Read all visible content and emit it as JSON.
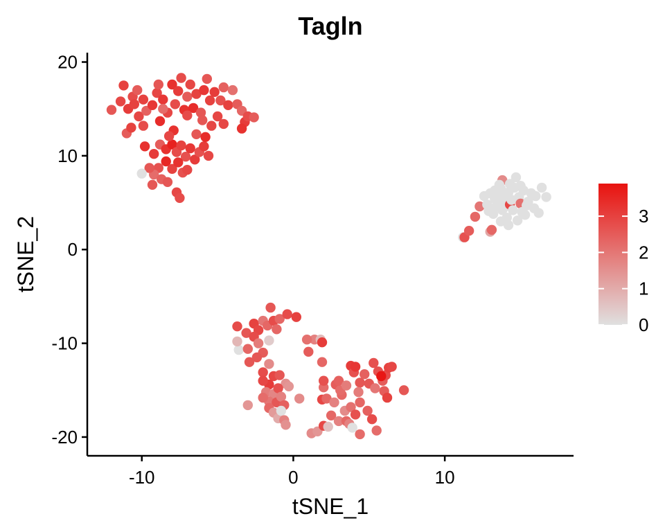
{
  "chart_data": {
    "type": "scatter",
    "title": "Tagln",
    "xlabel": "tSNE_1",
    "ylabel": "tSNE_2",
    "xlim": [
      -13.6,
      18.5
    ],
    "ylim": [
      -22,
      21
    ],
    "x_ticks": [
      -10,
      0,
      10
    ],
    "y_ticks": [
      -20,
      -10,
      0,
      10,
      20
    ],
    "x_tick_labels": [
      "-10",
      "0",
      "10"
    ],
    "y_tick_labels": [
      "-20",
      "-10",
      "0",
      "10",
      "20"
    ],
    "grid": false,
    "legend": {
      "placement": "right",
      "type": "colorbar",
      "min": 0,
      "max": 3.9,
      "ticks": [
        0,
        1,
        2,
        3
      ],
      "tick_labels": [
        "0",
        "1",
        "2",
        "3"
      ],
      "color_low": "#e0e0e0",
      "color_high": "#e8120f"
    },
    "point_color_low": "#e0e0e0",
    "point_color_high": "#e8120f",
    "points": [
      [
        -12.0,
        14.9,
        2.6
      ],
      [
        -11.4,
        15.8,
        2.9
      ],
      [
        -11.2,
        17.5,
        3.0
      ],
      [
        -10.9,
        15.0,
        3.1
      ],
      [
        -11.0,
        12.4,
        2.5
      ],
      [
        -10.7,
        13.0,
        3.0
      ],
      [
        -10.6,
        16.3,
        2.8
      ],
      [
        -10.3,
        17.0,
        2.5
      ],
      [
        -10.2,
        14.2,
        2.9
      ],
      [
        -9.9,
        16.0,
        3.0
      ],
      [
        -9.7,
        14.8,
        2.4
      ],
      [
        -9.9,
        13.2,
        2.8
      ],
      [
        -9.3,
        15.4,
        3.2
      ],
      [
        -9.0,
        16.7,
        2.9
      ],
      [
        -8.8,
        13.7,
        3.4
      ],
      [
        -8.9,
        17.6,
        2.6
      ],
      [
        -8.6,
        16.0,
        3.2
      ],
      [
        -8.3,
        14.6,
        2.9
      ],
      [
        -8.0,
        17.6,
        3.3
      ],
      [
        -7.8,
        15.5,
        2.8
      ],
      [
        -7.6,
        16.9,
        3.1
      ],
      [
        -7.4,
        18.3,
        2.8
      ],
      [
        -7.2,
        14.9,
        3.3
      ],
      [
        -7.0,
        16.3,
        2.5
      ],
      [
        -6.8,
        17.6,
        2.9
      ],
      [
        -6.6,
        15.1,
        3.4
      ],
      [
        -6.4,
        16.6,
        3.0
      ],
      [
        -6.1,
        14.6,
        2.6
      ],
      [
        -5.9,
        17.0,
        3.2
      ],
      [
        -5.7,
        18.2,
        2.6
      ],
      [
        -5.5,
        15.9,
        3.0
      ],
      [
        -5.2,
        16.8,
        3.1
      ],
      [
        -5.0,
        14.2,
        2.9
      ],
      [
        -4.8,
        15.9,
        2.7
      ],
      [
        -4.6,
        17.3,
        2.4
      ],
      [
        -4.3,
        15.4,
        3.0
      ],
      [
        -4.0,
        17.0,
        2.1
      ],
      [
        -3.7,
        15.5,
        2.5
      ],
      [
        -3.4,
        14.8,
        2.3
      ],
      [
        -3.2,
        13.6,
        3.1
      ],
      [
        -3.0,
        14.2,
        2.8
      ],
      [
        -2.6,
        14.1,
        2.5
      ],
      [
        -6.0,
        13.8,
        2.6
      ],
      [
        -5.4,
        13.2,
        2.9
      ],
      [
        -4.6,
        13.4,
        2.9
      ],
      [
        -3.4,
        12.9,
        3.3
      ],
      [
        -8.6,
        15.0,
        2.2
      ],
      [
        -7.0,
        14.3,
        2.8
      ],
      [
        -9.8,
        11.0,
        3.3
      ],
      [
        -9.2,
        10.2,
        3.1
      ],
      [
        -8.8,
        11.2,
        2.5
      ],
      [
        -8.4,
        10.7,
        3.3
      ],
      [
        -8.0,
        11.2,
        3.6
      ],
      [
        -7.7,
        10.4,
        2.8
      ],
      [
        -7.4,
        11.1,
        3.0
      ],
      [
        -7.1,
        9.9,
        2.7
      ],
      [
        -6.8,
        10.8,
        3.2
      ],
      [
        -6.5,
        9.6,
        3.1
      ],
      [
        -6.2,
        10.4,
        2.7
      ],
      [
        -5.9,
        11.0,
        3.1
      ],
      [
        -5.6,
        10.0,
        2.9
      ],
      [
        -8.4,
        9.4,
        3.5
      ],
      [
        -8.0,
        8.6,
        3.0
      ],
      [
        -7.6,
        9.3,
        3.3
      ],
      [
        -7.3,
        8.2,
        2.7
      ],
      [
        -7.0,
        8.5,
        2.9
      ],
      [
        -8.9,
        8.7,
        2.7
      ],
      [
        -9.2,
        8.0,
        2.2
      ],
      [
        -9.5,
        8.7,
        2.6
      ],
      [
        -10.0,
        8.1,
        0.0
      ],
      [
        -8.7,
        7.5,
        2.4
      ],
      [
        -8.3,
        7.2,
        2.6
      ],
      [
        -9.3,
        6.9,
        2.6
      ],
      [
        -7.7,
        6.1,
        2.9
      ],
      [
        -7.5,
        5.5,
        2.8
      ],
      [
        -7.9,
        12.7,
        3.3
      ],
      [
        -8.2,
        12.1,
        2.9
      ],
      [
        -10.5,
        15.5,
        3.0
      ],
      [
        -6.4,
        12.3,
        2.6
      ],
      [
        -5.8,
        12.0,
        3.4
      ],
      [
        -3.7,
        -8.2,
        2.8
      ],
      [
        -3.1,
        -8.9,
        2.6
      ],
      [
        -2.6,
        -7.9,
        3.0
      ],
      [
        -2.3,
        -8.6,
        2.9
      ],
      [
        -2.0,
        -7.6,
        2.0
      ],
      [
        -1.7,
        -8.1,
        2.3
      ],
      [
        -1.5,
        -6.2,
        2.6
      ],
      [
        -1.3,
        -7.6,
        2.8
      ],
      [
        -1.1,
        -8.5,
        2.3
      ],
      [
        -0.9,
        -7.4,
        2.3
      ],
      [
        -0.4,
        -6.9,
        2.8
      ],
      [
        0.2,
        -7.2,
        3.0
      ],
      [
        -3.6,
        -10.7,
        0.0
      ],
      [
        -3.7,
        -9.8,
        0.8
      ],
      [
        -3.0,
        -10.6,
        2.3
      ],
      [
        -2.6,
        -9.3,
        2.8
      ],
      [
        -2.3,
        -10.0,
        1.9
      ],
      [
        -2.0,
        -11.0,
        2.5
      ],
      [
        -1.6,
        -9.7,
        0.4
      ],
      [
        -2.9,
        -12.0,
        2.6
      ],
      [
        -2.4,
        -11.5,
        2.6
      ],
      [
        -2.0,
        -13.1,
        2.8
      ],
      [
        -1.6,
        -12.2,
        1.6
      ],
      [
        -1.3,
        -13.5,
        2.9
      ],
      [
        -0.9,
        -13.4,
        2.6
      ],
      [
        -0.5,
        -14.3,
        1.5
      ],
      [
        -0.3,
        -14.6,
        1.4
      ],
      [
        -1.6,
        -14.4,
        3.1
      ],
      [
        -2.0,
        -14.0,
        2.9
      ],
      [
        -1.8,
        -15.2,
        1.9
      ],
      [
        -1.3,
        -15.4,
        1.7
      ],
      [
        -1.6,
        -16.2,
        2.0
      ],
      [
        -1.0,
        -14.8,
        2.7
      ],
      [
        -2.0,
        -15.8,
        2.2
      ],
      [
        -1.1,
        -16.3,
        2.6
      ],
      [
        -0.8,
        -15.7,
        1.8
      ],
      [
        -0.6,
        -16.6,
        2.4
      ],
      [
        -1.6,
        -16.9,
        2.3
      ],
      [
        -3.0,
        -16.6,
        1.4
      ],
      [
        -1.3,
        -17.4,
        1.3
      ],
      [
        -1.0,
        -18.0,
        1.0
      ],
      [
        -0.8,
        -17.2,
        0.0
      ],
      [
        -0.6,
        -18.2,
        1.8
      ],
      [
        -0.5,
        -18.7,
        1.5
      ],
      [
        0.4,
        -15.9,
        1.6
      ],
      [
        1.0,
        -10.9,
        2.5
      ],
      [
        1.4,
        -9.6,
        1.8
      ],
      [
        1.8,
        -9.6,
        0.7
      ],
      [
        1.9,
        -9.9,
        3.1
      ],
      [
        0.9,
        -9.6,
        2.1
      ],
      [
        1.2,
        -19.6,
        1.6
      ],
      [
        1.6,
        -19.4,
        1.4
      ],
      [
        2.0,
        -18.8,
        2.9
      ],
      [
        2.3,
        -18.9,
        0.6
      ],
      [
        1.9,
        -16.0,
        2.9
      ],
      [
        2.5,
        -17.7,
        2.3
      ],
      [
        2.2,
        -15.9,
        2.3
      ],
      [
        2.7,
        -16.3,
        1.8
      ],
      [
        3.0,
        -18.3,
        1.8
      ],
      [
        3.2,
        -15.5,
        2.3
      ],
      [
        2.0,
        -14.7,
        2.2
      ],
      [
        2.8,
        -14.4,
        2.5
      ],
      [
        3.1,
        -15.0,
        2.2
      ],
      [
        3.4,
        -17.2,
        1.6
      ],
      [
        3.5,
        -18.3,
        2.3
      ],
      [
        3.7,
        -18.6,
        1.8
      ],
      [
        3.8,
        -16.8,
        2.1
      ],
      [
        3.9,
        -19.0,
        0.0
      ],
      [
        4.1,
        -17.6,
        2.7
      ],
      [
        4.4,
        -19.7,
        2.2
      ],
      [
        4.4,
        -16.3,
        2.3
      ],
      [
        4.9,
        -17.2,
        2.4
      ],
      [
        5.2,
        -18.1,
        2.8
      ],
      [
        5.5,
        -19.3,
        2.2
      ],
      [
        2.0,
        -14.0,
        2.7
      ],
      [
        1.9,
        -12.0,
        2.3
      ],
      [
        3.0,
        -14.0,
        2.4
      ],
      [
        3.5,
        -14.5,
        1.9
      ],
      [
        3.8,
        -12.4,
        3.1
      ],
      [
        4.0,
        -13.1,
        2.7
      ],
      [
        4.1,
        -12.5,
        3.2
      ],
      [
        4.4,
        -14.2,
        2.6
      ],
      [
        4.7,
        -13.3,
        2.4
      ],
      [
        5.0,
        -14.3,
        2.6
      ],
      [
        5.3,
        -12.1,
        2.7
      ],
      [
        5.6,
        -13.0,
        2.7
      ],
      [
        5.9,
        -14.0,
        2.5
      ],
      [
        6.1,
        -13.4,
        2.8
      ],
      [
        6.3,
        -12.6,
        3.0
      ],
      [
        6.5,
        -12.5,
        2.9
      ],
      [
        6.0,
        -15.1,
        2.5
      ],
      [
        6.2,
        -15.8,
        3.0
      ],
      [
        7.3,
        -15.0,
        2.6
      ],
      [
        5.8,
        -13.5,
        3.8
      ],
      [
        5.4,
        -14.8,
        2.0
      ],
      [
        4.3,
        -15.2,
        1.9
      ],
      [
        11.2,
        1.3,
        0.0
      ],
      [
        11.3,
        1.3,
        2.7
      ],
      [
        11.6,
        2.0,
        2.5
      ],
      [
        12.0,
        3.5,
        2.3
      ],
      [
        12.3,
        4.6,
        2.0
      ],
      [
        12.6,
        5.7,
        0.0
      ],
      [
        12.8,
        4.8,
        0.0
      ],
      [
        12.9,
        4.1,
        0.0
      ],
      [
        13.0,
        6.0,
        0.0
      ],
      [
        13.0,
        1.9,
        1.1
      ],
      [
        13.1,
        2.1,
        2.3
      ],
      [
        13.2,
        3.8,
        0.0
      ],
      [
        13.3,
        5.4,
        0.0
      ],
      [
        13.3,
        6.3,
        0.0
      ],
      [
        13.4,
        4.6,
        0.0
      ],
      [
        13.5,
        5.0,
        0.0
      ],
      [
        13.6,
        5.8,
        0.0
      ],
      [
        13.7,
        3.0,
        0.0
      ],
      [
        13.7,
        6.5,
        0.0
      ],
      [
        13.8,
        4.2,
        0.0
      ],
      [
        13.8,
        7.4,
        1.6
      ],
      [
        13.9,
        5.4,
        0.0
      ],
      [
        14.0,
        4.6,
        0.0
      ],
      [
        14.1,
        3.4,
        0.0
      ],
      [
        14.2,
        6.1,
        0.0
      ],
      [
        14.3,
        4.8,
        2.9
      ],
      [
        14.3,
        7.0,
        0.0
      ],
      [
        14.4,
        5.3,
        0.0
      ],
      [
        14.5,
        4.2,
        0.0
      ],
      [
        14.6,
        6.6,
        0.0
      ],
      [
        14.7,
        7.7,
        0.0
      ],
      [
        14.8,
        3.1,
        0.0
      ],
      [
        14.9,
        5.6,
        0.0
      ],
      [
        15.0,
        4.9,
        2.1
      ],
      [
        15.1,
        4.0,
        0.0
      ],
      [
        15.2,
        6.3,
        0.0
      ],
      [
        15.3,
        3.7,
        0.0
      ],
      [
        15.4,
        4.7,
        0.0
      ],
      [
        15.5,
        5.1,
        0.0
      ],
      [
        15.7,
        6.0,
        0.0
      ],
      [
        15.9,
        4.4,
        0.0
      ],
      [
        16.0,
        5.7,
        0.0
      ],
      [
        16.2,
        3.9,
        0.0
      ],
      [
        16.4,
        6.6,
        0.0
      ],
      [
        16.7,
        5.6,
        0.0
      ],
      [
        14.2,
        2.6,
        0.0
      ],
      [
        13.6,
        6.9,
        0.0
      ],
      [
        15.0,
        6.8,
        0.0
      ]
    ]
  }
}
